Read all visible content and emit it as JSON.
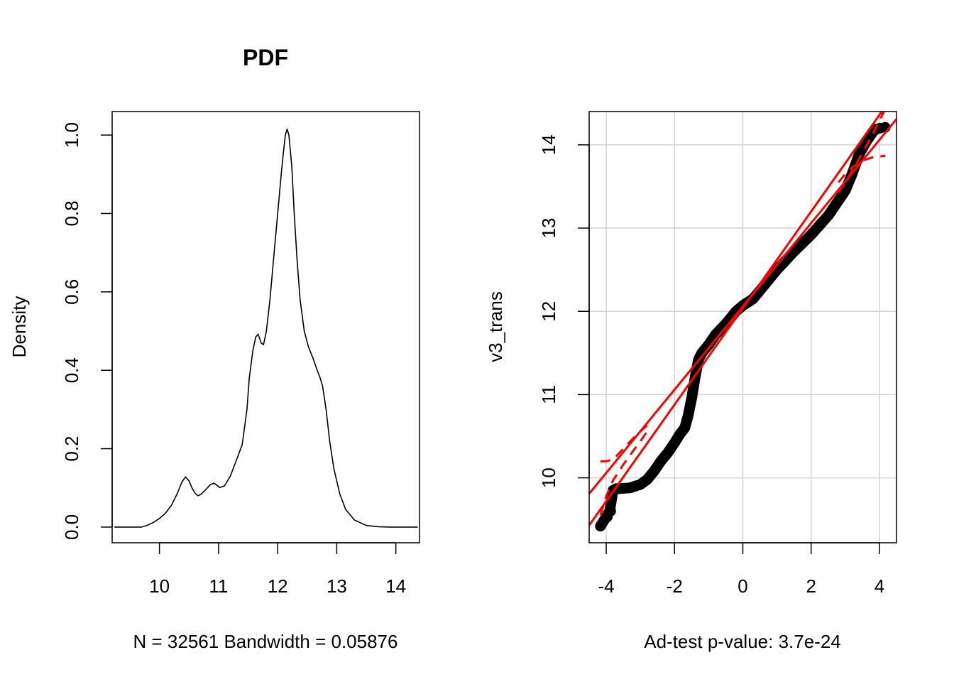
{
  "chart_data": [
    {
      "type": "line",
      "title": "PDF",
      "xlabel": "N = 32561   Bandwidth = 0.05876",
      "ylabel": "Density",
      "xlim": [
        9.2,
        14.4
      ],
      "ylim": [
        -0.04,
        1.06
      ],
      "xticks": [
        "10",
        "11",
        "12",
        "13",
        "14"
      ],
      "yticks": [
        "0.0",
        "0.2",
        "0.4",
        "0.6",
        "0.8",
        "1.0"
      ],
      "grid": false,
      "series": [
        {
          "color": "#000000",
          "x": [
            9.24,
            9.5,
            9.7,
            9.8,
            9.9,
            10.0,
            10.1,
            10.2,
            10.3,
            10.38,
            10.44,
            10.5,
            10.55,
            10.6,
            10.65,
            10.7,
            10.8,
            10.86,
            10.92,
            10.97,
            11.02,
            11.1,
            11.2,
            11.3,
            11.4,
            11.48,
            11.52,
            11.58,
            11.63,
            11.67,
            11.72,
            11.76,
            11.81,
            11.87,
            11.94,
            12.0,
            12.06,
            12.1,
            12.13,
            12.16,
            12.19,
            12.24,
            12.28,
            12.33,
            12.38,
            12.45,
            12.52,
            12.6,
            12.67,
            12.72,
            12.76,
            12.82,
            12.88,
            12.95,
            13.05,
            13.15,
            13.3,
            13.5,
            13.7,
            13.9,
            14.1,
            14.37
          ],
          "y": [
            0.0,
            0.0,
            0.0,
            0.005,
            0.012,
            0.022,
            0.035,
            0.055,
            0.085,
            0.115,
            0.128,
            0.118,
            0.1,
            0.087,
            0.08,
            0.083,
            0.098,
            0.108,
            0.112,
            0.107,
            0.101,
            0.105,
            0.13,
            0.17,
            0.21,
            0.3,
            0.38,
            0.45,
            0.485,
            0.492,
            0.47,
            0.465,
            0.5,
            0.58,
            0.7,
            0.8,
            0.9,
            0.96,
            1.0,
            1.015,
            1.0,
            0.92,
            0.8,
            0.68,
            0.58,
            0.5,
            0.46,
            0.43,
            0.4,
            0.38,
            0.36,
            0.3,
            0.22,
            0.15,
            0.085,
            0.045,
            0.018,
            0.004,
            0.001,
            0.0,
            0.0,
            0.0
          ]
        }
      ]
    },
    {
      "type": "scatter",
      "title": "",
      "xlabel": "Ad-test p-value: 3.7e-24",
      "ylabel": "v3_trans",
      "xlim": [
        -4.5,
        4.5
      ],
      "ylim": [
        9.22,
        14.4
      ],
      "xticks": [
        "-4",
        "-2",
        "0",
        "2",
        "4"
      ],
      "yticks": [
        "10",
        "11",
        "12",
        "13",
        "14"
      ],
      "grid": true,
      "points_color": "#000000",
      "line_color": "#ff0000",
      "curve": {
        "x": [
          -4.17,
          -3.97,
          -3.9,
          -3.8,
          -3.7,
          -3.6,
          -3.3,
          -3.0,
          -2.8,
          -2.6,
          -2.4,
          -2.2,
          -2.0,
          -1.85,
          -1.7,
          -1.6,
          -1.5,
          -1.4,
          -1.3,
          -1.2,
          -1.1,
          -1.0,
          -0.8,
          -0.5,
          -0.2,
          0.0,
          0.3,
          0.6,
          1.0,
          1.5,
          2.0,
          2.5,
          3.0,
          3.2,
          3.4,
          3.6,
          3.8,
          3.9
        ],
        "y": [
          9.42,
          9.55,
          9.6,
          9.85,
          9.87,
          9.87,
          9.88,
          9.92,
          9.98,
          10.08,
          10.2,
          10.3,
          10.42,
          10.52,
          10.6,
          10.75,
          10.95,
          11.2,
          11.42,
          11.5,
          11.55,
          11.6,
          11.72,
          11.85,
          12.0,
          12.07,
          12.15,
          12.3,
          12.5,
          12.72,
          12.92,
          13.15,
          13.45,
          13.65,
          13.88,
          14.03,
          14.15,
          14.2
        ]
      },
      "extreme_points": [
        {
          "x": -4.17,
          "y": 9.42
        },
        {
          "x": -3.97,
          "y": 9.53
        },
        {
          "x": -3.87,
          "y": 9.6
        },
        {
          "x": 3.88,
          "y": 14.18
        },
        {
          "x": 4.02,
          "y": 14.2
        },
        {
          "x": 4.17,
          "y": 14.21
        }
      ],
      "reference_lines": [
        {
          "slope": 0.5,
          "intercept": 12.06
        },
        {
          "slope": 0.58,
          "intercept": 12.04
        }
      ],
      "confidence_bands": [
        {
          "x": [
            -4.17,
            -4.0,
            -3.8,
            -3.5,
            -3.2,
            -3.0,
            -2.8
          ],
          "y": [
            10.2,
            10.2,
            10.22,
            10.35,
            10.48,
            10.56,
            10.63
          ]
        },
        {
          "x": [
            -4.17,
            -4.0,
            -3.8,
            -3.5,
            -3.2,
            -3.0,
            -2.8
          ],
          "y": [
            9.55,
            9.78,
            9.97,
            10.16,
            10.33,
            10.44,
            10.56
          ]
        },
        {
          "x": [
            2.8,
            3.0,
            3.2,
            3.5,
            3.8,
            4.0,
            4.17
          ],
          "y": [
            13.55,
            13.65,
            13.73,
            13.81,
            13.85,
            13.86,
            13.87
          ]
        },
        {
          "x": [
            2.8,
            3.0,
            3.2,
            3.5,
            3.8,
            4.0,
            4.17
          ],
          "y": [
            13.43,
            13.55,
            13.69,
            13.9,
            14.13,
            14.29,
            14.43
          ]
        }
      ]
    }
  ]
}
